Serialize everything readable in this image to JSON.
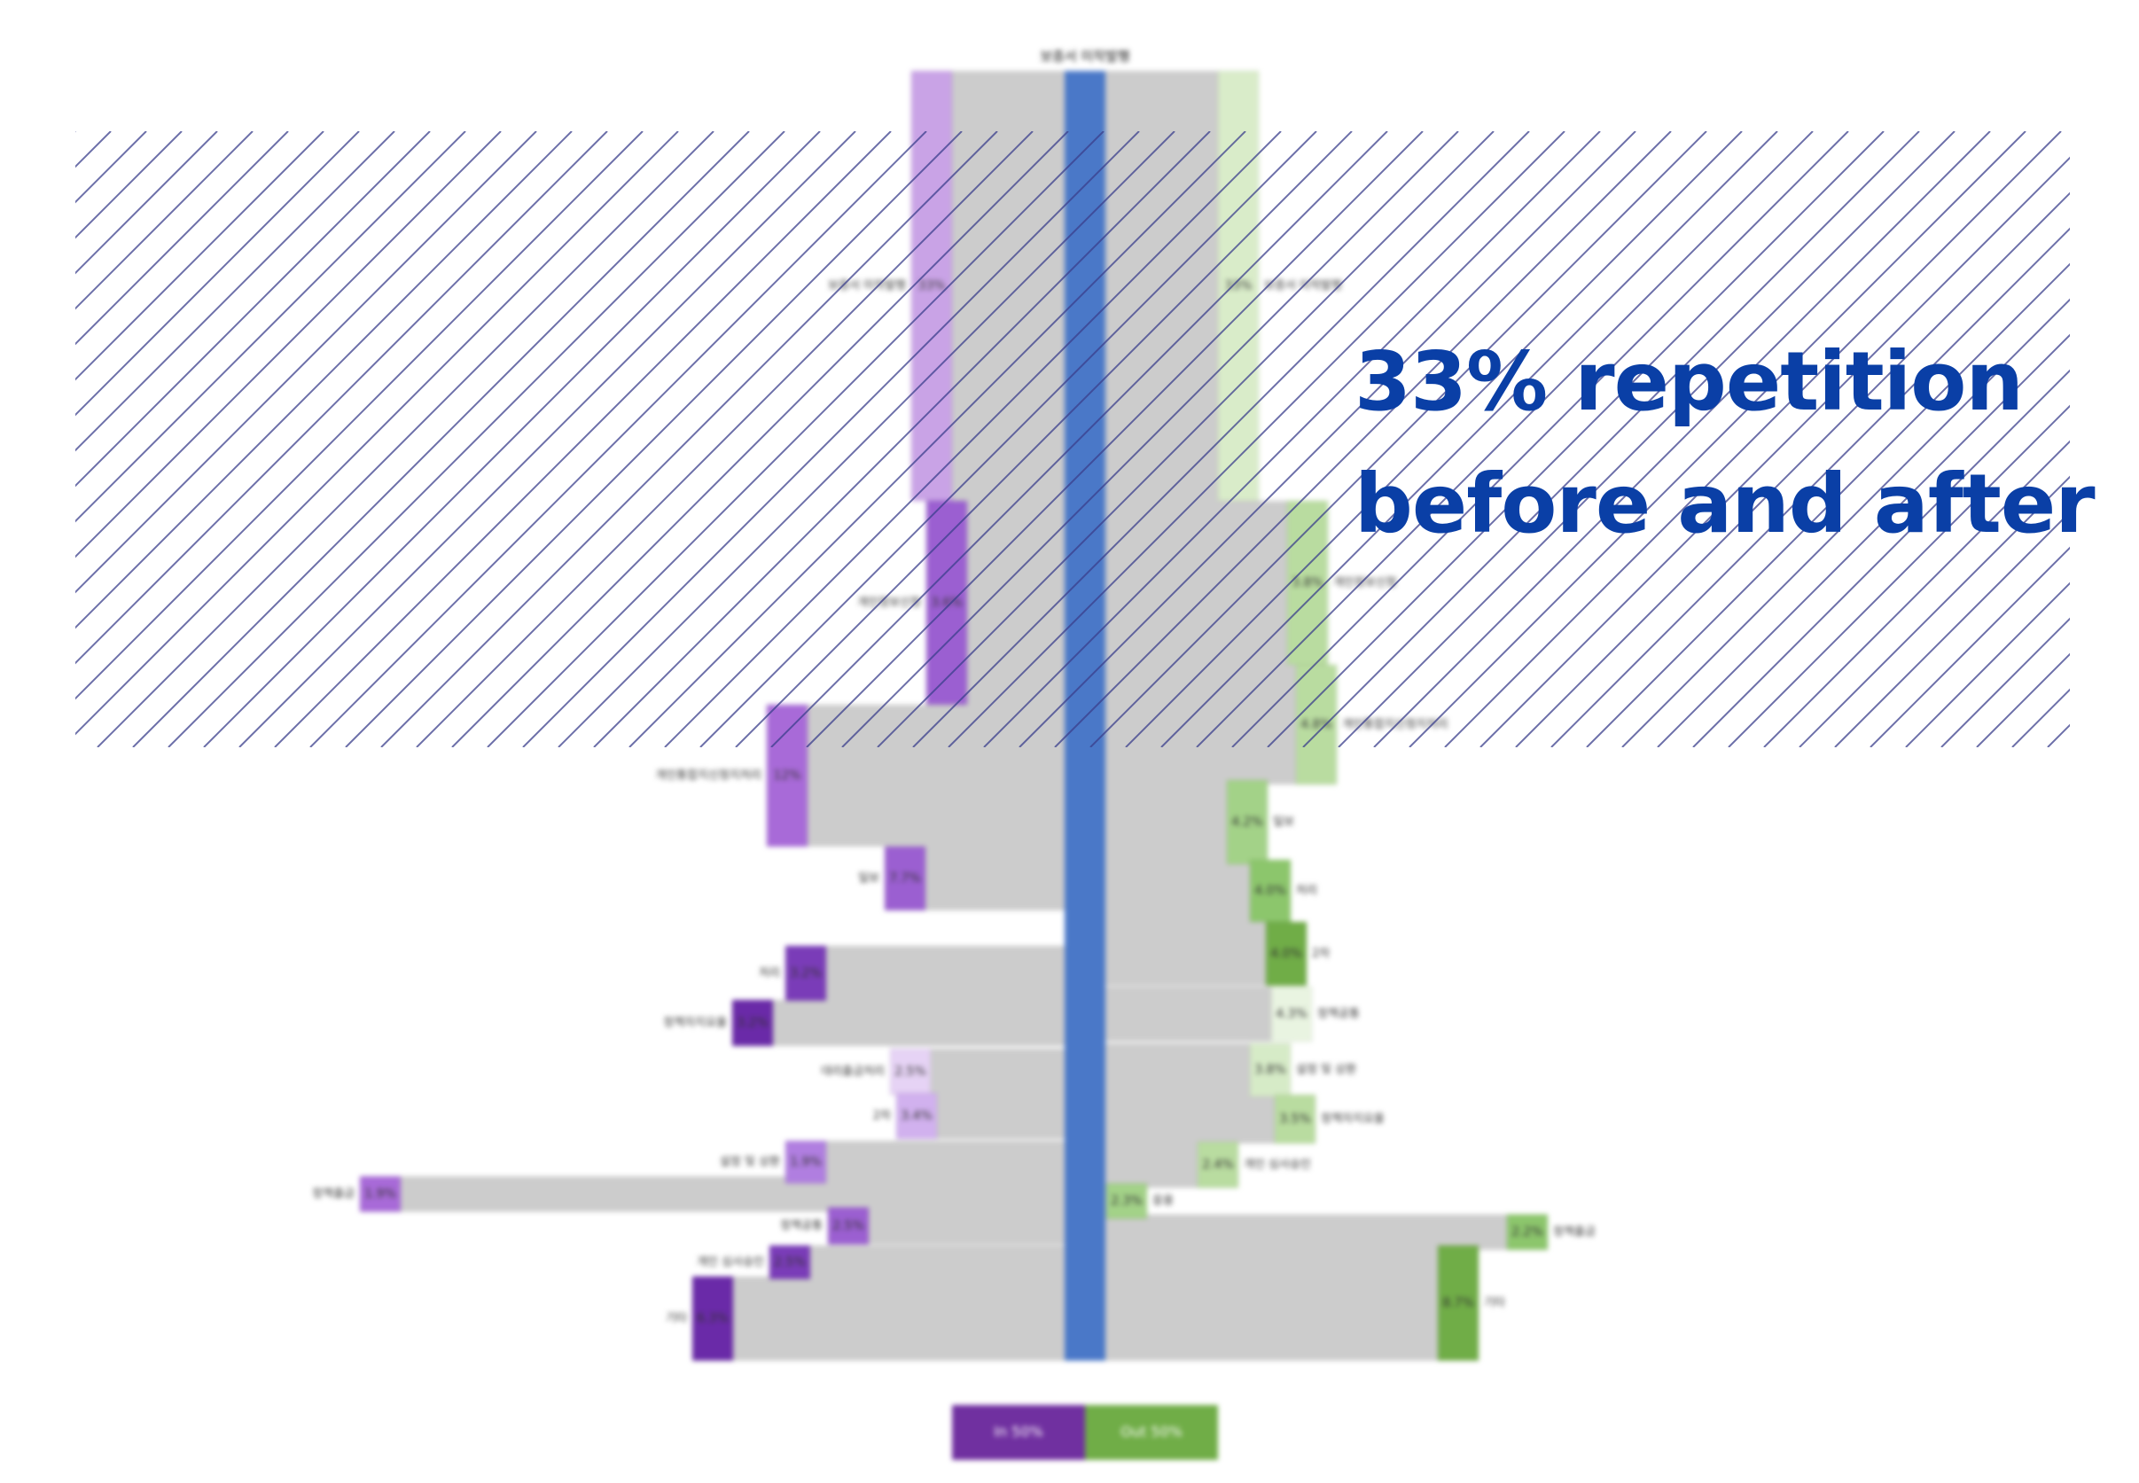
{
  "headline": {
    "line1": "33% repetition",
    "line2": "before and after"
  },
  "colors": {
    "center_axis": "#4a78c8",
    "band": "#cccccc",
    "hatch": "#3b3f8c",
    "headline": "#0a3fa6",
    "in_legend": "#7030a0",
    "out_legend": "#70ad47"
  },
  "chart_data": {
    "type": "sankey",
    "title": "보증서 미작발행",
    "legend": [
      {
        "label": "In 50%",
        "color": "#7030a0"
      },
      {
        "label": "Out 50%",
        "color": "#70ad47"
      }
    ],
    "in_side": [
      {
        "label": "보증서 미작발행",
        "value": "33%",
        "color": "#c9a3e6"
      },
      {
        "label": "개인정보신청",
        "value": "3.6%",
        "color": "#9b5fd1"
      },
      {
        "label": "개인통합지신청지처리",
        "value": "12%",
        "color": "#a86ad8"
      },
      {
        "label": "일보",
        "value": "7.7%",
        "color": "#9b5fd1"
      },
      {
        "label": "처리",
        "value": "3.2%",
        "color": "#7a3cb8"
      },
      {
        "label": "정책자지요율",
        "value": "3.2%",
        "color": "#6a2aa8"
      },
      {
        "label": "대리출금처리",
        "value": "2.5%",
        "color": "#e6d3f5"
      },
      {
        "label": "2차",
        "value": "3.4%",
        "color": "#d1b1ee"
      },
      {
        "label": "설정 및 상환",
        "value": "1.9%",
        "color": "#b07ee0"
      },
      {
        "label": "정책출금",
        "value": "1.9%",
        "color": "#a86ad8"
      },
      {
        "label": "정책공통",
        "value": "2.5%",
        "color": "#9b5fd1"
      },
      {
        "label": "개인 심사승인",
        "value": "2.5%",
        "color": "#7a3cb8"
      },
      {
        "label": "기타",
        "value": "6.3%",
        "color": "#6a2aa8"
      }
    ],
    "out_side": [
      {
        "label": "보증서 미작발행",
        "value": "33%",
        "color": "#d9ecc9"
      },
      {
        "label": "개인정보신청",
        "value": "3.8%",
        "color": "#b9dca0"
      },
      {
        "label": "개인통합지신청지처리",
        "value": "4.8%",
        "color": "#b9dca0"
      },
      {
        "label": "일보",
        "value": "4.2%",
        "color": "#a3d288"
      },
      {
        "label": "처리",
        "value": "4.0%",
        "color": "#8cc66c"
      },
      {
        "label": "2차",
        "value": "4.0%",
        "color": "#70ad47"
      },
      {
        "label": "정책공통",
        "value": "4.3%",
        "color": "#e9f4e1"
      },
      {
        "label": "설정 및 상환",
        "value": "3.8%",
        "color": "#d6ebc7"
      },
      {
        "label": "정책자지요율",
        "value": "3.5%",
        "color": "#b9dca0"
      },
      {
        "label": "개인 심사승인",
        "value": "2.4%",
        "color": "#b9dca0"
      },
      {
        "label": "응용",
        "value": "2.3%",
        "color": "#a3d288"
      },
      {
        "label": "정책출금",
        "value": "2.2%",
        "color": "#8cc66c"
      },
      {
        "label": "기타",
        "value": "8.7%",
        "color": "#70ad47"
      }
    ]
  }
}
